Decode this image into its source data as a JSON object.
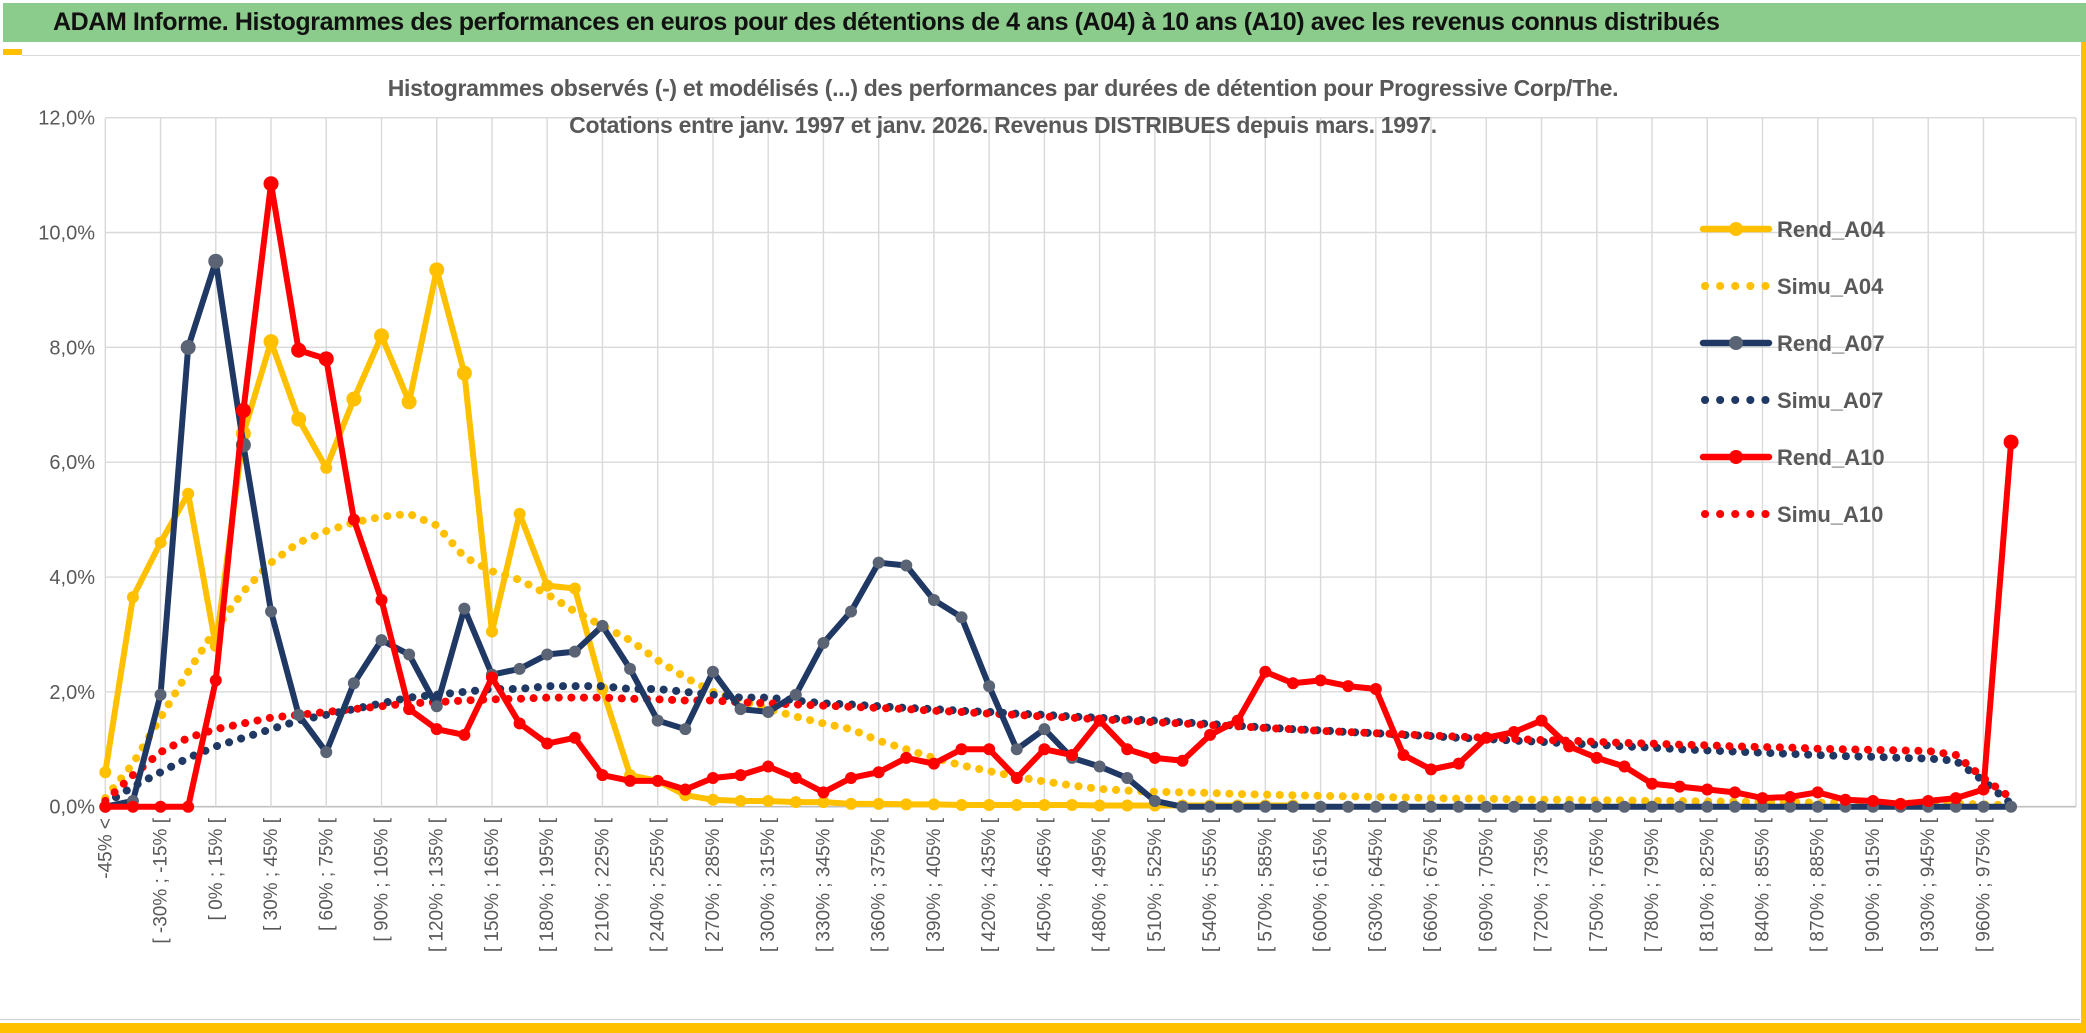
{
  "header": {
    "title": "ADAM Informe. Histogrammes des performances en euros pour des détentions de 4 ans (A04) à 10 ans (A10) avec les revenus connus distribués"
  },
  "chart_data": {
    "type": "line",
    "title_line1": "Histogrammes observés (-) et modélisés (...) des performances par durées de détention pour Progressive Corp/The.",
    "title_line2": "Cotations entre janv. 1997 et janv. 2026. Revenus DISTRIBUES depuis mars. 1997.",
    "grid": true,
    "legend_position": "right-inside",
    "ylim": [
      0,
      12
    ],
    "y_tick_values": [
      0,
      2,
      4,
      6,
      8,
      10,
      12
    ],
    "y_tick_labels": [
      "0,0%",
      "2,0%",
      "4,0%",
      "6,0%",
      "8,0%",
      "10,0%",
      "12,0%"
    ],
    "n_points": 70,
    "x_label_every": 2,
    "x_labels": [
      "-45% <",
      "[ -30% ; -15% [",
      "[ 0% ; 15% [",
      "[ 30% ; 45% [",
      "[ 60% ; 75% [",
      "[ 90% ; 105% [",
      "[ 120% ; 135% [",
      "[ 150% ; 165% [",
      "[ 180% ; 195% [",
      "[ 210% ; 225% [",
      "[ 240% ; 255% [",
      "[ 270% ; 285% [",
      "[ 300% ; 315% [",
      "[ 330% ; 345% [",
      "[ 360% ; 375% [",
      "[ 390% ; 405% [",
      "[ 420% ; 435% [",
      "[ 450% ; 465% [",
      "[ 480% ; 495% [",
      "[ 510% ; 525% [",
      "[ 540% ; 555% [",
      "[ 570% ; 585% [",
      "[ 600% ; 615% [",
      "[ 630% ; 645% [",
      "[ 660% ; 675% [",
      "[ 690% ; 705% [",
      "[ 720% ; 735% [",
      "[ 750% ; 765% [",
      "[ 780% ; 795% [",
      "[ 810% ; 825% [",
      "[ 840% ; 855% [",
      "[ 870% ; 885% [",
      "[ 900% ; 915% [",
      "[ 930% ; 945% [",
      "[ 960% ; 975% ["
    ],
    "series": [
      {
        "name": "Rend_A04",
        "style": "solid",
        "color": "#FFC000",
        "marker_color": "#FFC000",
        "values": [
          0.6,
          3.65,
          4.6,
          5.45,
          2.8,
          6.5,
          8.1,
          6.75,
          5.9,
          7.1,
          8.2,
          7.05,
          9.35,
          7.55,
          3.05,
          5.1,
          3.85,
          3.8,
          2.05,
          0.55,
          0.45,
          0.2,
          0.12,
          0.1,
          0.1,
          0.08,
          0.08,
          0.05,
          0.05,
          0.04,
          0.04,
          0.03,
          0.03,
          0.03,
          0.03,
          0.03,
          0.02,
          0.02,
          0.02,
          0.02,
          0.02,
          0.02,
          0.02,
          0.02,
          null,
          null,
          null,
          null,
          null,
          null,
          null,
          null,
          null,
          null,
          null,
          null,
          null,
          null,
          null,
          null,
          null,
          null,
          null,
          null,
          null,
          null,
          null,
          null,
          null,
          null
        ]
      },
      {
        "name": "Simu_A04",
        "style": "dotted",
        "color": "#FFC000",
        "values": [
          0.15,
          0.75,
          1.55,
          2.35,
          3.1,
          3.75,
          4.25,
          4.6,
          4.8,
          4.95,
          5.05,
          5.1,
          4.9,
          4.35,
          4.1,
          3.95,
          3.7,
          3.4,
          3.15,
          2.9,
          2.55,
          2.25,
          2.0,
          1.85,
          1.7,
          1.57,
          1.45,
          1.35,
          1.15,
          1.0,
          0.85,
          0.72,
          0.62,
          0.52,
          0.44,
          0.37,
          0.31,
          0.28,
          0.26,
          0.25,
          0.24,
          0.22,
          0.21,
          0.2,
          0.19,
          0.18,
          0.17,
          0.16,
          0.15,
          0.14,
          0.14,
          0.13,
          0.12,
          0.12,
          0.11,
          0.11,
          0.1,
          0.1,
          0.09,
          0.09,
          0.08,
          0.08,
          0.07,
          0.07,
          0.06,
          0.06,
          0.05,
          0.05,
          0.04,
          0.03
        ]
      },
      {
        "name": "Rend_A07",
        "style": "solid",
        "color": "#1F3864",
        "marker_color": "#5A6474",
        "values": [
          0,
          0.1,
          1.95,
          8.0,
          9.5,
          6.3,
          3.4,
          1.6,
          0.95,
          2.15,
          2.9,
          2.65,
          1.75,
          3.45,
          2.3,
          2.4,
          2.65,
          2.7,
          3.15,
          2.4,
          1.5,
          1.35,
          2.35,
          1.7,
          1.65,
          1.95,
          2.85,
          3.4,
          4.25,
          4.2,
          3.6,
          3.3,
          2.1,
          1.0,
          1.35,
          0.85,
          0.7,
          0.5,
          0.1,
          0,
          0,
          0,
          0,
          0,
          0,
          0,
          0,
          0,
          0,
          0,
          0,
          0,
          0,
          0,
          0,
          0,
          0,
          0,
          0,
          0,
          0,
          0,
          0,
          0,
          0,
          0,
          0,
          0,
          0,
          0
        ]
      },
      {
        "name": "Simu_A07",
        "style": "dotted",
        "color": "#1F3864",
        "values": [
          0.05,
          0.35,
          0.6,
          0.85,
          1.05,
          1.2,
          1.35,
          1.5,
          1.6,
          1.7,
          1.8,
          1.9,
          1.95,
          2.0,
          2.05,
          2.05,
          2.1,
          2.1,
          2.1,
          2.05,
          2.05,
          2.0,
          1.95,
          1.9,
          1.9,
          1.85,
          1.8,
          1.78,
          1.75,
          1.72,
          1.7,
          1.67,
          1.65,
          1.62,
          1.6,
          1.57,
          1.55,
          1.52,
          1.5,
          1.47,
          1.44,
          1.41,
          1.38,
          1.35,
          1.33,
          1.3,
          1.28,
          1.25,
          1.23,
          1.2,
          1.18,
          1.15,
          1.13,
          1.1,
          1.08,
          1.05,
          1.03,
          1.0,
          0.98,
          0.96,
          0.94,
          0.92,
          0.9,
          0.88,
          0.87,
          0.85,
          0.84,
          0.8,
          0.45,
          0.05
        ]
      },
      {
        "name": "Rend_A10",
        "style": "solid",
        "color": "#FE0000",
        "marker_color": "#FE0000",
        "values": [
          0,
          0,
          0,
          0,
          2.2,
          6.9,
          10.85,
          7.95,
          7.8,
          5.0,
          3.6,
          1.7,
          1.35,
          1.25,
          2.25,
          1.45,
          1.1,
          1.2,
          0.55,
          0.45,
          0.45,
          0.3,
          0.5,
          0.55,
          0.7,
          0.5,
          0.25,
          0.5,
          0.6,
          0.85,
          0.75,
          1.0,
          1.0,
          0.5,
          1.0,
          0.9,
          1.5,
          1.0,
          0.85,
          0.8,
          1.25,
          1.5,
          2.35,
          2.15,
          2.2,
          2.1,
          2.05,
          0.9,
          0.65,
          0.75,
          1.2,
          1.3,
          1.5,
          1.05,
          0.85,
          0.7,
          0.4,
          0.35,
          0.3,
          0.25,
          0.15,
          0.17,
          0.25,
          0.12,
          0.1,
          0.05,
          0.1,
          0.15,
          0.3,
          6.35
        ]
      },
      {
        "name": "Simu_A10",
        "style": "dotted",
        "color": "#FE0000",
        "values": [
          0.1,
          0.55,
          0.95,
          1.2,
          1.35,
          1.45,
          1.55,
          1.6,
          1.65,
          1.7,
          1.75,
          1.8,
          1.82,
          1.85,
          1.87,
          1.88,
          1.9,
          1.9,
          1.9,
          1.88,
          1.87,
          1.85,
          1.85,
          1.82,
          1.8,
          1.78,
          1.76,
          1.74,
          1.72,
          1.7,
          1.67,
          1.65,
          1.62,
          1.6,
          1.57,
          1.55,
          1.52,
          1.5,
          1.47,
          1.45,
          1.42,
          1.4,
          1.37,
          1.35,
          1.32,
          1.3,
          1.28,
          1.26,
          1.24,
          1.22,
          1.2,
          1.18,
          1.16,
          1.15,
          1.13,
          1.11,
          1.1,
          1.08,
          1.07,
          1.05,
          1.04,
          1.03,
          1.01,
          1.0,
          0.99,
          0.98,
          0.97,
          0.9,
          0.5,
          0.15
        ]
      }
    ]
  },
  "colors": {
    "banner_green": "#8BCB8B",
    "accent_gold": "#FFC000",
    "grid": "#D9D9D9",
    "axis_line": "#BFBFBF",
    "axis_text": "#595959",
    "title_text": "#595959"
  }
}
